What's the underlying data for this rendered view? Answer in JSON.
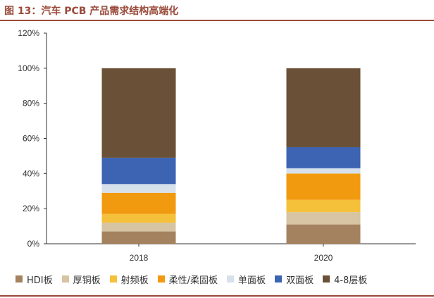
{
  "page": {
    "title": "图 13：汽车 PCB 产品需求结构高端化"
  },
  "chart_data": {
    "type": "bar",
    "stacked": true,
    "title": "图 13：汽车 PCB 产品需求结构高端化",
    "xlabel": "",
    "ylabel": "",
    "categories": [
      "2018",
      "2020"
    ],
    "ylim": [
      0,
      120
    ],
    "yticks": [
      "0%",
      "20%",
      "40%",
      "60%",
      "80%",
      "100%",
      "120%"
    ],
    "grid": false,
    "legend_position": "bottom",
    "series": [
      {
        "name": "HDI板",
        "color": "#a5825f",
        "values": [
          7,
          11
        ]
      },
      {
        "name": "厚铜板",
        "color": "#d6c4a3",
        "values": [
          5,
          7
        ]
      },
      {
        "name": "射频板",
        "color": "#f5c03a",
        "values": [
          5,
          7
        ]
      },
      {
        "name": "柔性/柔固板",
        "color": "#f29a0f",
        "values": [
          12,
          15
        ]
      },
      {
        "name": "单面板",
        "color": "#d6e1ec",
        "values": [
          5,
          3
        ]
      },
      {
        "name": "双面板",
        "color": "#3d64b3",
        "values": [
          15,
          12
        ]
      },
      {
        "name": "4-8层板",
        "color": "#6a5036",
        "values": [
          51,
          45
        ]
      }
    ]
  }
}
